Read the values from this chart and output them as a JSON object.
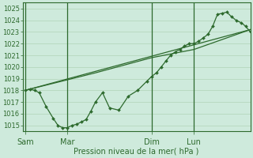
{
  "title": "Pression niveau de la mer( hPa )",
  "bg_color": "#ceeadc",
  "grid_color": "#b0d4b8",
  "line_color": "#2d6a2d",
  "ylim": [
    1014.5,
    1025.5
  ],
  "yticks": [
    1015,
    1016,
    1017,
    1018,
    1019,
    1020,
    1021,
    1022,
    1023,
    1024,
    1025
  ],
  "xticklabels": [
    "Sam",
    "Mar",
    "Dim",
    "Lun"
  ],
  "xticklocs": [
    0,
    36,
    108,
    144
  ],
  "xlim": [
    -2,
    192
  ],
  "vline_locs": [
    0,
    36,
    108,
    144
  ],
  "series1_x": [
    0,
    4,
    8,
    12,
    18,
    24,
    28,
    32,
    36,
    40,
    44,
    48,
    52,
    56,
    60,
    66,
    72,
    80,
    88,
    96,
    104,
    108,
    112,
    116,
    120,
    124,
    128,
    132,
    136,
    140,
    144,
    148,
    152,
    156,
    160,
    164,
    168,
    172,
    176,
    180,
    184,
    188,
    192
  ],
  "series1_y": [
    1018.0,
    1018.1,
    1018.0,
    1017.8,
    1016.6,
    1015.6,
    1015.0,
    1014.8,
    1014.8,
    1015.0,
    1015.1,
    1015.3,
    1015.5,
    1016.2,
    1017.0,
    1017.8,
    1016.5,
    1016.3,
    1017.5,
    1018.0,
    1018.8,
    1019.2,
    1019.5,
    1020.0,
    1020.5,
    1021.0,
    1021.3,
    1021.5,
    1021.8,
    1022.0,
    1022.0,
    1022.2,
    1022.5,
    1022.8,
    1023.5,
    1024.5,
    1024.6,
    1024.7,
    1024.3,
    1024.0,
    1023.8,
    1023.5,
    1023.0
  ],
  "series2_x": [
    0,
    192
  ],
  "series2_y": [
    1018.0,
    1023.2
  ],
  "series3_x": [
    0,
    60,
    108,
    144,
    192
  ],
  "series3_y": [
    1018.0,
    1019.5,
    1020.8,
    1021.5,
    1023.2
  ]
}
